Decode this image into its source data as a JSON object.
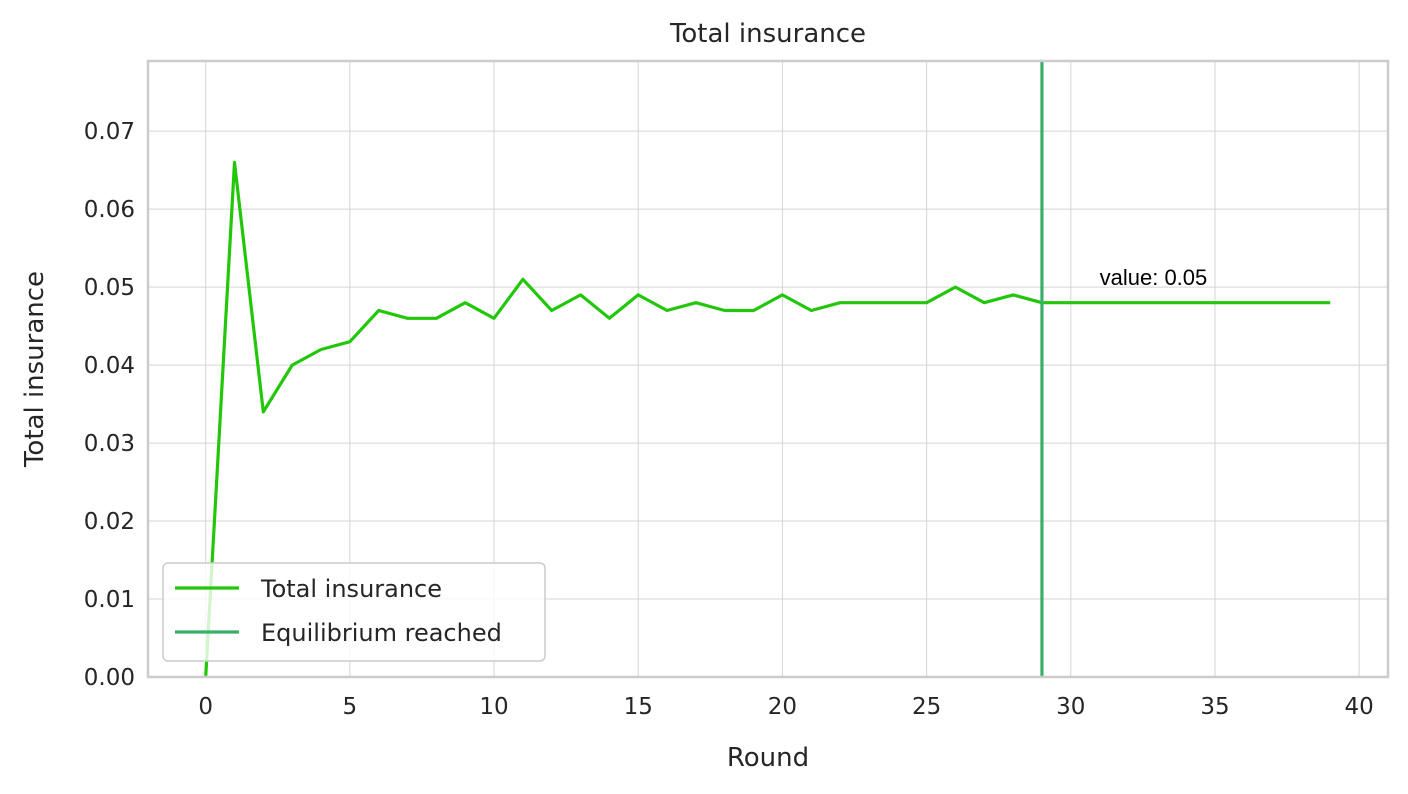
{
  "chart_data": {
    "type": "line",
    "title": "Total insurance",
    "xlabel": "Round",
    "ylabel": "Total insurance",
    "xlim": [
      -2,
      41
    ],
    "ylim": [
      0,
      0.079
    ],
    "xticks": [
      0,
      5,
      10,
      15,
      20,
      25,
      30,
      35,
      40
    ],
    "yticks": [
      0.0,
      0.01,
      0.02,
      0.03,
      0.04,
      0.05,
      0.06,
      0.07
    ],
    "ytick_labels": [
      "0.00",
      "0.01",
      "0.02",
      "0.03",
      "0.04",
      "0.05",
      "0.06",
      "0.07"
    ],
    "grid": true,
    "legend_position": "lower-left",
    "series": [
      {
        "name": "Total insurance",
        "color": "#22c70a",
        "x": [
          0,
          1,
          2,
          3,
          4,
          5,
          6,
          7,
          8,
          9,
          10,
          11,
          12,
          13,
          14,
          15,
          16,
          17,
          18,
          19,
          20,
          21,
          22,
          23,
          24,
          25,
          26,
          27,
          28,
          29,
          30,
          31,
          32,
          33,
          34,
          35,
          36,
          37,
          38,
          39
        ],
        "y": [
          0.0,
          0.066,
          0.034,
          0.04,
          0.042,
          0.043,
          0.047,
          0.046,
          0.046,
          0.048,
          0.046,
          0.051,
          0.047,
          0.049,
          0.046,
          0.049,
          0.047,
          0.048,
          0.047,
          0.047,
          0.049,
          0.047,
          0.048,
          0.048,
          0.048,
          0.048,
          0.05,
          0.048,
          0.049,
          0.048,
          0.048,
          0.048,
          0.048,
          0.048,
          0.048,
          0.048,
          0.048,
          0.048,
          0.048,
          0.048
        ]
      }
    ],
    "vlines": [
      {
        "name": "Equilibrium reached",
        "x": 29,
        "color": "#3aaf6a"
      }
    ],
    "annotations": [
      {
        "text": "value: 0.05",
        "x": 31,
        "y": 0.05
      }
    ]
  }
}
